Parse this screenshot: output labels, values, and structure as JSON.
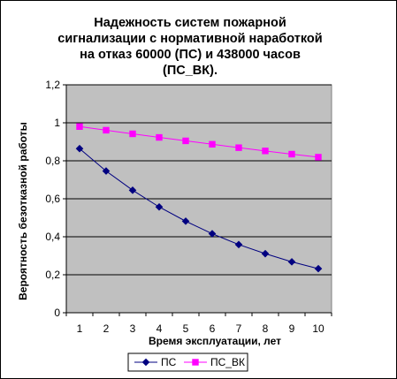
{
  "chart_data": {
    "type": "line",
    "title_lines": [
      "Надежность систем пожарной",
      "сигнализации с нормативной наработкой",
      "на отказ 60000 (ПС) и 438000 часов",
      "(ПС_ВК)."
    ],
    "xlabel": "Время эксплуатации, лет",
    "ylabel": "Вероятность безотказной работы",
    "categories": [
      "1",
      "2",
      "3",
      "4",
      "5",
      "6",
      "7",
      "8",
      "9",
      "10"
    ],
    "x": [
      1,
      2,
      3,
      4,
      5,
      6,
      7,
      8,
      9,
      10
    ],
    "ylim": [
      0,
      1.2
    ],
    "yticks": [
      "0",
      "0,2",
      "0,4",
      "0,6",
      "0,8",
      "1",
      "1,2"
    ],
    "ytick_values": [
      0,
      0.2,
      0.4,
      0.6,
      0.8,
      1.0,
      1.2
    ],
    "grid": true,
    "plot_background": "#c0c0c0",
    "legend_position": "bottom",
    "series": [
      {
        "name": "ПС",
        "color": "#000080",
        "marker": "diamond",
        "values": [
          0.864,
          0.746,
          0.645,
          0.557,
          0.482,
          0.416,
          0.359,
          0.311,
          0.268,
          0.232
        ]
      },
      {
        "name": "ПС_ВК",
        "color": "#ff00ff",
        "marker": "square",
        "values": [
          0.98,
          0.961,
          0.942,
          0.923,
          0.905,
          0.887,
          0.869,
          0.852,
          0.835,
          0.819
        ]
      }
    ]
  }
}
